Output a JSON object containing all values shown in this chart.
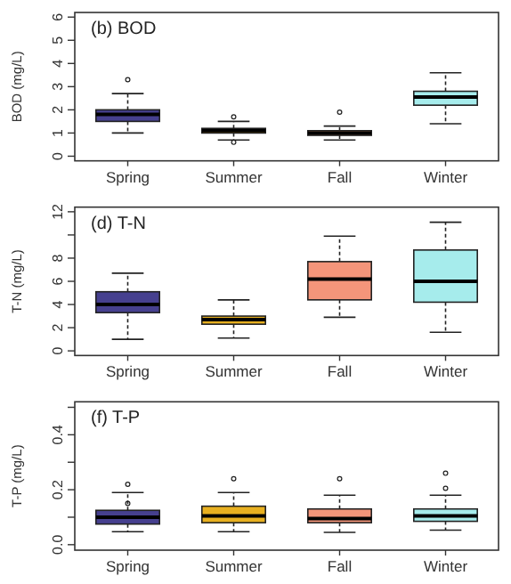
{
  "chart_data": [
    {
      "type": "box",
      "title": "(b) BOD",
      "ylabel": "BOD (mg/L)",
      "categories": [
        "Spring",
        "Summer",
        "Fall",
        "Winter"
      ],
      "colors": [
        "#46408f",
        "#e8b020",
        "#e89a6e",
        "#a6ecec"
      ],
      "ylim": [
        -0.2,
        6.2
      ],
      "yticks": [
        0,
        1,
        2,
        3,
        4,
        5,
        6
      ],
      "boxes": [
        {
          "low": 1.0,
          "q1": 1.5,
          "median": 1.8,
          "q3": 2.0,
          "high": 2.7,
          "outliers": [
            3.3
          ]
        },
        {
          "low": 0.7,
          "q1": 1.0,
          "median": 1.1,
          "q3": 1.2,
          "high": 1.5,
          "outliers": [
            1.7,
            0.6
          ]
        },
        {
          "low": 0.7,
          "q1": 0.9,
          "median": 1.0,
          "q3": 1.1,
          "high": 1.3,
          "outliers": [
            1.9
          ]
        },
        {
          "low": 1.4,
          "q1": 2.2,
          "median": 2.55,
          "q3": 2.8,
          "high": 3.6
        }
      ]
    },
    {
      "type": "box",
      "title": "(d) T-N",
      "ylabel": "T-N (mg/L)",
      "categories": [
        "Spring",
        "Summer",
        "Fall",
        "Winter"
      ],
      "colors": [
        "#46408f",
        "#e8b020",
        "#f4957a",
        "#a6ecec"
      ],
      "ylim": [
        -0.4,
        12.4
      ],
      "yticks": [
        0,
        2,
        4,
        6,
        8,
        {
          "value": 10,
          "label": null
        },
        12
      ],
      "boxes": [
        {
          "low": 1.0,
          "q1": 3.3,
          "median": 4.0,
          "q3": 5.1,
          "high": 6.7
        },
        {
          "low": 1.1,
          "q1": 2.3,
          "median": 2.7,
          "q3": 3.0,
          "high": 4.4
        },
        {
          "low": 2.9,
          "q1": 4.4,
          "median": 6.2,
          "q3": 7.7,
          "high": 9.9
        },
        {
          "low": 1.6,
          "q1": 4.2,
          "median": 6.0,
          "q3": 8.7,
          "high": 11.1
        }
      ]
    },
    {
      "type": "box",
      "title": "(f) T-P",
      "ylabel": "T-P (mg/L)",
      "categories": [
        "Spring",
        "Summer",
        "Fall",
        "Winter"
      ],
      "colors": [
        "#46408f",
        "#e8b020",
        "#f4957a",
        "#a6ecec"
      ],
      "ylim": [
        -0.02,
        0.52
      ],
      "yticks": [
        {
          "value": 0,
          "label": "0.0"
        },
        {
          "value": 0.1,
          "label": null
        },
        0.2,
        {
          "value": 0.3,
          "label": null
        },
        0.4,
        {
          "value": 0.5,
          "label": null
        }
      ],
      "boxes": [
        {
          "low": 0.047,
          "q1": 0.075,
          "median": 0.1,
          "q3": 0.125,
          "high": 0.19,
          "outliers": [
            0.22,
            0.15
          ]
        },
        {
          "low": 0.047,
          "q1": 0.08,
          "median": 0.105,
          "q3": 0.14,
          "high": 0.19,
          "outliers": [
            0.24
          ]
        },
        {
          "low": 0.045,
          "q1": 0.08,
          "median": 0.095,
          "q3": 0.13,
          "high": 0.18,
          "outliers": [
            0.24
          ]
        },
        {
          "low": 0.053,
          "q1": 0.085,
          "median": 0.105,
          "q3": 0.13,
          "high": 0.18,
          "outliers": [
            0.26,
            0.205
          ]
        }
      ]
    }
  ]
}
